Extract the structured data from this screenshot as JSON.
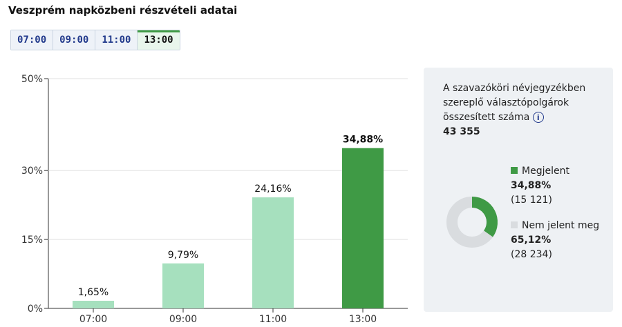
{
  "title": "Veszprém napközbeni részvételi adatai",
  "tabs": [
    {
      "label": "07:00",
      "active": false
    },
    {
      "label": "09:00",
      "active": false
    },
    {
      "label": "11:00",
      "active": false
    },
    {
      "label": "13:00",
      "active": true
    }
  ],
  "chart_data": {
    "type": "bar",
    "categories": [
      "07:00",
      "09:00",
      "11:00",
      "13:00"
    ],
    "values": [
      1.65,
      9.79,
      24.16,
      34.88
    ],
    "value_labels": [
      "1,65%",
      "9,79%",
      "24,16%",
      "34,88%"
    ],
    "highlight_index": 3,
    "yticks": [
      0,
      15,
      30,
      50
    ],
    "ytick_labels": [
      "0%",
      "15%",
      "30%",
      "50%"
    ],
    "ylim": [
      0,
      50
    ],
    "colors": {
      "default": "#a6e0be",
      "highlight": "#3f9a45"
    }
  },
  "panel": {
    "description": "A szavazóköri névjegyzékben szereplő választópolgárok összesített száma",
    "info_icon": "info-icon",
    "total": "43 355",
    "present": {
      "label": "Megjelent",
      "percent": "34,88%",
      "count": "(15 121)",
      "color": "#3f9a45",
      "fraction": 0.3488
    },
    "absent": {
      "label": "Nem jelent meg",
      "percent": "65,12%",
      "count": "(28 234)",
      "color": "#d9dcdf",
      "fraction": 0.6512
    }
  }
}
